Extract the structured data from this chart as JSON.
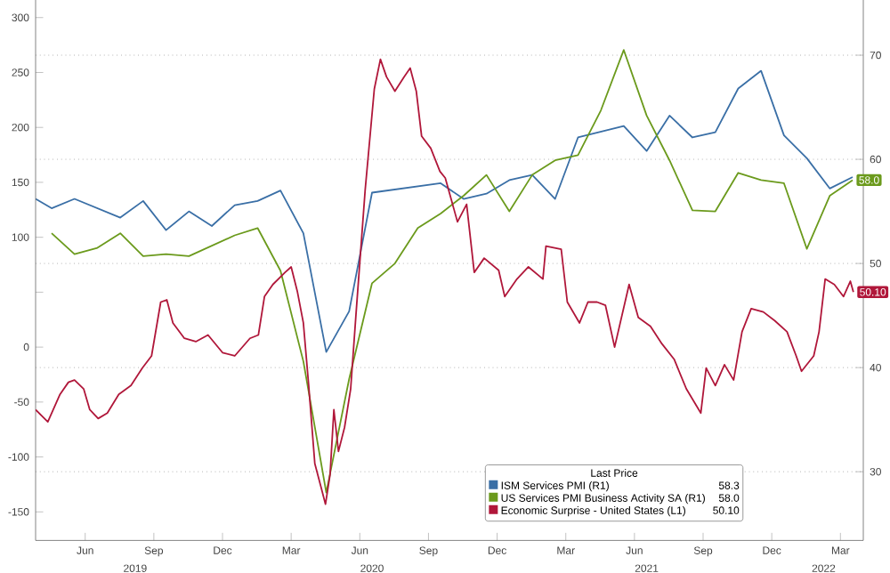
{
  "chart_data": {
    "type": "line",
    "legend_title": "Last Price",
    "legend": "bottom right",
    "grid": true,
    "xlim": [
      "2019-04-10",
      "2022-04-15"
    ],
    "xticks": [
      {
        "value": "2019-06-15",
        "label": "Jun"
      },
      {
        "value": "2019-09-15",
        "label": "Sep"
      },
      {
        "value": "2019-12-15",
        "label": "Dec"
      },
      {
        "value": "2020-03-15",
        "label": "Mar"
      },
      {
        "value": "2020-06-15",
        "label": "Jun"
      },
      {
        "value": "2020-09-15",
        "label": "Sep"
      },
      {
        "value": "2020-12-15",
        "label": "Dec"
      },
      {
        "value": "2021-03-15",
        "label": "Mar"
      },
      {
        "value": "2021-06-15",
        "label": "Jun"
      },
      {
        "value": "2021-09-15",
        "label": "Sep"
      },
      {
        "value": "2021-12-15",
        "label": "Dec"
      },
      {
        "value": "2022-03-15",
        "label": "Mar"
      }
    ],
    "ylim": [
      -176,
      316
    ],
    "yticks": [
      -150,
      -100,
      -50,
      0,
      {
        "value": 50,
        "label": null
      },
      100,
      150,
      200,
      250,
      300
    ],
    "y2lim": [
      23.4,
      75.3
    ],
    "y2ticks": [
      30,
      40,
      50,
      60,
      70
    ],
    "annotations": [
      "2019",
      "2020",
      "2021",
      "2022",
      "58.3",
      "58.0",
      "50.10"
    ],
    "series": [
      {
        "name": "ISM Services PMI  (R1)",
        "color": "#3a6fa6",
        "axis": "y2",
        "x": [
          "2019-04-10",
          "2019-05-01",
          "2019-06-01",
          "2019-08-01",
          "2019-09-01",
          "2019-10-01",
          "2019-11-01",
          "2019-12-01",
          "2020-01-01",
          "2020-02-01",
          "2020-03-01",
          "2020-04-01",
          "2020-05-01",
          "2020-06-01",
          "2020-07-01",
          "2020-10-01",
          "2020-11-01",
          "2020-12-01",
          "2021-01-01",
          "2021-02-01",
          "2021-03-01",
          "2021-04-01",
          "2021-06-01",
          "2021-07-01",
          "2021-08-01",
          "2021-09-01",
          "2021-10-01",
          "2021-11-01",
          "2021-12-01",
          "2022-01-01",
          "2022-02-01",
          "2022-03-01",
          "2022-04-01"
        ],
        "values": [
          56.2,
          55.3,
          56.2,
          54.4,
          56.0,
          53.2,
          55.0,
          53.6,
          55.6,
          56.0,
          57.0,
          52.9,
          41.5,
          45.4,
          56.8,
          57.7,
          56.2,
          56.7,
          58.0,
          58.5,
          56.2,
          62.1,
          63.2,
          60.8,
          64.2,
          62.1,
          62.6,
          66.8,
          68.5,
          62.3,
          60.1,
          57.2,
          58.3
        ]
      },
      {
        "name": "US Services PMI Business Activity SA  (R1)",
        "color": "#6b9a1c",
        "axis": "y2",
        "x": [
          "2019-05-01",
          "2019-06-01",
          "2019-07-01",
          "2019-08-01",
          "2019-09-01",
          "2019-10-01",
          "2019-11-01",
          "2020-01-01",
          "2020-02-01",
          "2020-03-01",
          "2020-04-01",
          "2020-05-01",
          "2020-06-01",
          "2020-07-01",
          "2020-08-01",
          "2020-09-01",
          "2020-10-01",
          "2020-11-01",
          "2020-12-01",
          "2021-01-01",
          "2021-02-01",
          "2021-03-01",
          "2021-04-01",
          "2021-05-01",
          "2021-06-01",
          "2021-07-01",
          "2021-08-01",
          "2021-09-01",
          "2021-10-01",
          "2021-11-01",
          "2021-12-01",
          "2022-01-01",
          "2022-02-01",
          "2022-03-01",
          "2022-04-01"
        ],
        "values": [
          52.9,
          50.9,
          51.5,
          52.9,
          50.7,
          50.9,
          50.7,
          52.7,
          53.4,
          49.3,
          40.6,
          28.0,
          38.9,
          48.1,
          50.0,
          53.4,
          54.8,
          56.5,
          58.5,
          55.0,
          58.5,
          59.9,
          60.4,
          64.7,
          70.5,
          64.2,
          59.9,
          55.1,
          55.0,
          58.7,
          58.0,
          57.7,
          51.4,
          56.5,
          58.0
        ],
        "value_labels": [
          null,
          null,
          null,
          null,
          null,
          null,
          null,
          null,
          null,
          null,
          null,
          null,
          null,
          null,
          null,
          null,
          null,
          null,
          null,
          null,
          null,
          null,
          null,
          null,
          null,
          null,
          null,
          null,
          null,
          null,
          null,
          null,
          null,
          null,
          "58.0"
        ]
      },
      {
        "name": "Economic Surprise - United States  (L1)",
        "color": "#b0173a",
        "axis": "y",
        "x": [
          "2019-04-10",
          "2019-04-26",
          "2019-05-12",
          "2019-05-23",
          "2019-06-01",
          "2019-06-13",
          "2019-06-21",
          "2019-07-02",
          "2019-07-14",
          "2019-07-29",
          "2019-08-15",
          "2019-08-30",
          "2019-09-12",
          "2019-09-24",
          "2019-10-02",
          "2019-10-10",
          "2019-10-25",
          "2019-11-10",
          "2019-11-26",
          "2019-12-15",
          "2020-01-01",
          "2020-01-21",
          "2020-02-02",
          "2020-02-10",
          "2020-02-21",
          "2020-03-07",
          "2020-03-15",
          "2020-03-23",
          "2020-03-31",
          "2020-04-08",
          "2020-04-16",
          "2020-04-24",
          "2020-04-30",
          "2020-05-06",
          "2020-05-11",
          "2020-05-17",
          "2020-05-25",
          "2020-06-03",
          "2020-06-10",
          "2020-06-22",
          "2020-07-04",
          "2020-07-12",
          "2020-07-20",
          "2020-08-01",
          "2020-08-13",
          "2020-08-21",
          "2020-08-29",
          "2020-09-06",
          "2020-09-18",
          "2020-09-30",
          "2020-10-07",
          "2020-10-23",
          "2020-11-05",
          "2020-11-15",
          "2020-11-28",
          "2020-12-17",
          "2020-12-25",
          "2021-01-11",
          "2021-01-26",
          "2021-02-15",
          "2021-02-19",
          "2021-03-09",
          "2021-03-17",
          "2021-04-03",
          "2021-04-14",
          "2021-04-26",
          "2021-05-07",
          "2021-05-19",
          "2021-06-08",
          "2021-06-20",
          "2021-07-06",
          "2021-07-21",
          "2021-08-07",
          "2021-08-23",
          "2021-09-12",
          "2021-09-19",
          "2021-10-01",
          "2021-10-13",
          "2021-10-25",
          "2021-11-06",
          "2021-11-18",
          "2021-12-04",
          "2021-12-19",
          "2022-01-05",
          "2022-01-17",
          "2022-01-24",
          "2022-02-10",
          "2022-02-17",
          "2022-02-25",
          "2022-03-07",
          "2022-03-19",
          "2022-03-28",
          "2022-04-02"
        ],
        "values": [
          -57,
          -68,
          -43,
          -32,
          -30,
          -38,
          -57,
          -65,
          -60,
          -43,
          -35,
          -19,
          -8,
          41,
          43,
          22,
          8,
          5,
          11,
          -5,
          -8,
          8,
          11,
          46,
          57,
          68,
          73,
          51,
          22,
          -35,
          -106,
          -127,
          -143,
          -116,
          -57,
          -95,
          -73,
          -38,
          30,
          143,
          235,
          262,
          246,
          233,
          246,
          254,
          233,
          192,
          181,
          160,
          154,
          114,
          130,
          68,
          81,
          70,
          46,
          62,
          73,
          62,
          92,
          89,
          41,
          22,
          41,
          41,
          38,
          0,
          57,
          27,
          19,
          3,
          -11,
          -38,
          -60,
          -19,
          -35,
          -16,
          -30,
          14,
          35,
          32,
          24,
          14,
          -8,
          -22,
          -8,
          14,
          62,
          57,
          46,
          60,
          50.1
        ],
        "value_labels": [
          null,
          null,
          null,
          null,
          null,
          null,
          null,
          null,
          null,
          null,
          null,
          null,
          null,
          null,
          null,
          null,
          null,
          null,
          null,
          null,
          null,
          null,
          null,
          null,
          null,
          null,
          null,
          null,
          null,
          null,
          null,
          null,
          null,
          null,
          null,
          null,
          null,
          null,
          null,
          null,
          null,
          null,
          null,
          null,
          null,
          null,
          null,
          null,
          null,
          null,
          null,
          null,
          null,
          null,
          null,
          null,
          null,
          null,
          null,
          null,
          null,
          null,
          null,
          null,
          null,
          null,
          null,
          null,
          null,
          null,
          null,
          null,
          null,
          null,
          null,
          null,
          null,
          null,
          null,
          null,
          null,
          null,
          null,
          null,
          null,
          null,
          null,
          null,
          null,
          null,
          null,
          null,
          "50.10"
        ]
      }
    ]
  }
}
